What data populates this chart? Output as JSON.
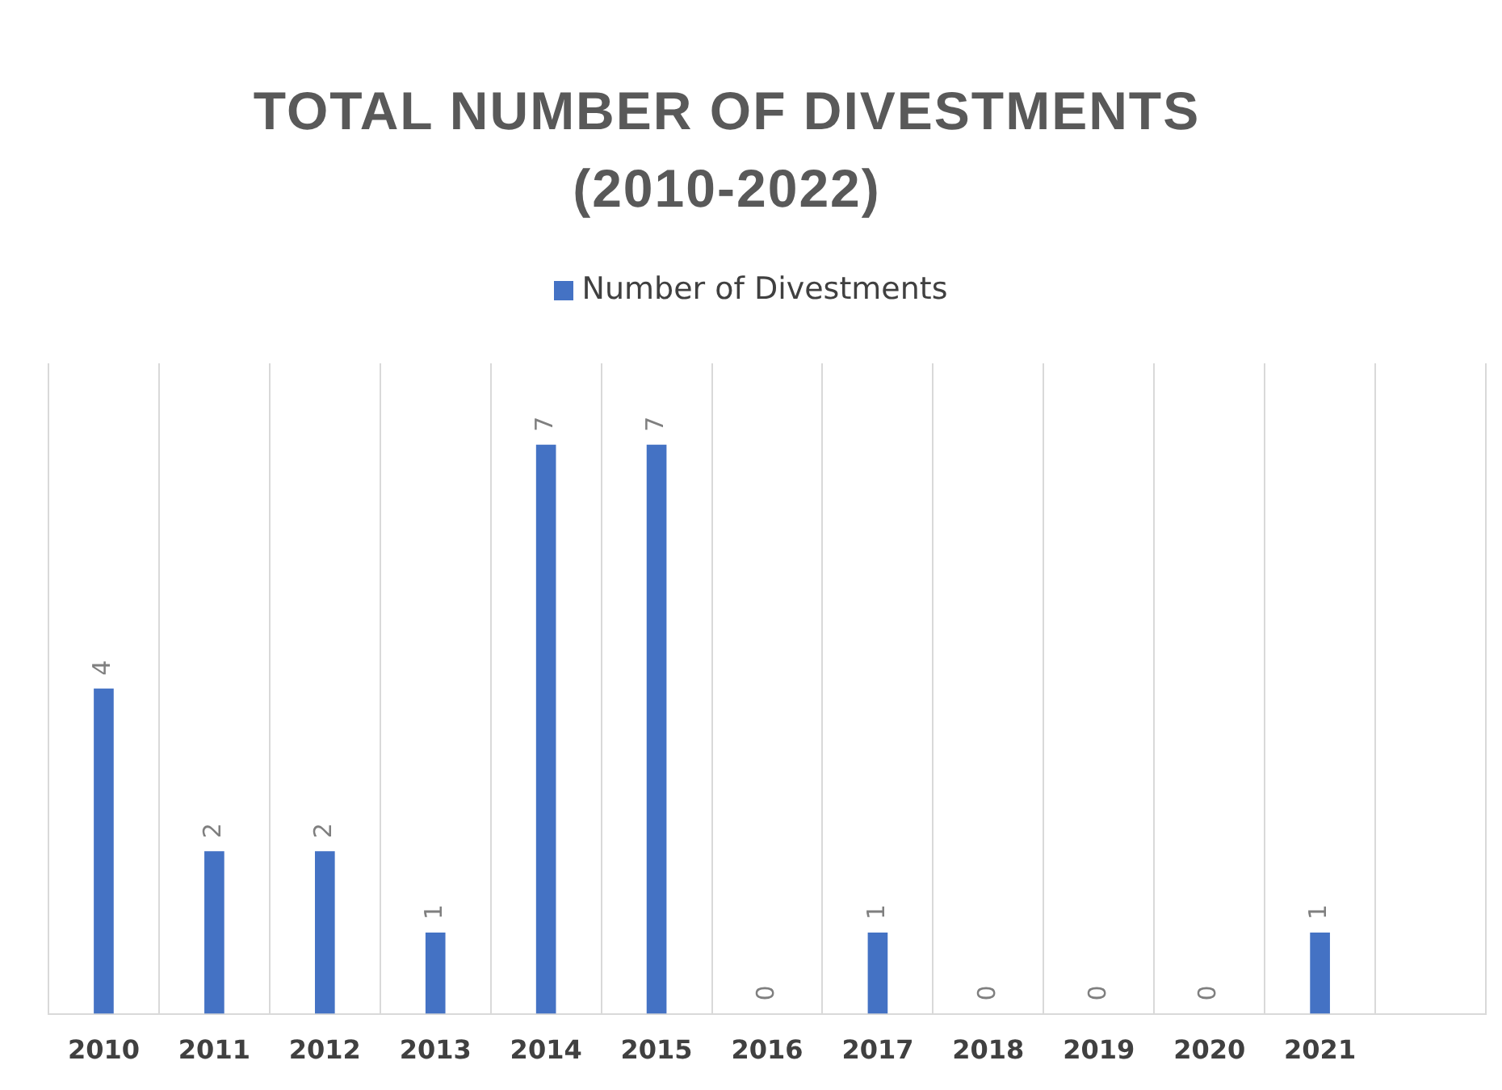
{
  "chart_data": {
    "type": "bar",
    "title": "TOTAL NUMBER OF DIVESTMENTS (2010-2022)",
    "categories": [
      "2010",
      "2011",
      "2012",
      "2013",
      "2014",
      "2015",
      "2016",
      "2017",
      "2018",
      "2019",
      "2020",
      "2021",
      null
    ],
    "series": [
      {
        "name": "Number of Divestments",
        "color": "#4472c4",
        "values": [
          4,
          2,
          2,
          1,
          7,
          7,
          0,
          1,
          0,
          0,
          0,
          1,
          null
        ]
      }
    ],
    "data_labels": true,
    "grid": "x",
    "legend": "top"
  }
}
